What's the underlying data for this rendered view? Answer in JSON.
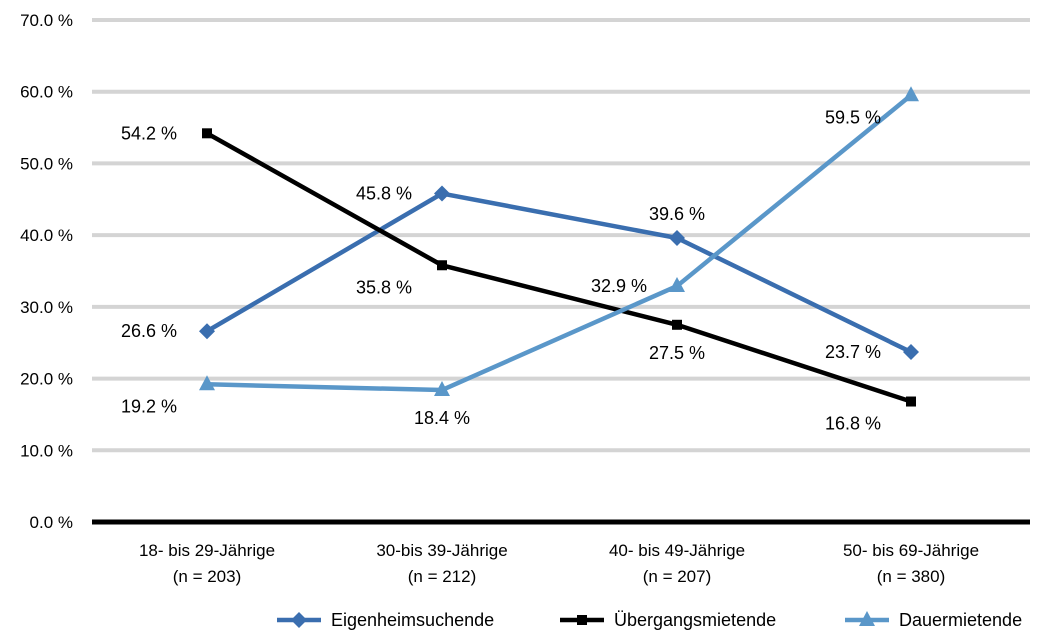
{
  "chart_data": {
    "type": "line",
    "title": "",
    "xlabel": "",
    "ylabel": "",
    "ylim": [
      0,
      70
    ],
    "y_ticks": [
      0,
      10,
      20,
      30,
      40,
      50,
      60,
      70
    ],
    "y_tick_labels": [
      "0.0 %",
      "10.0 %",
      "20.0 %",
      "30.0 %",
      "40.0 %",
      "50.0 %",
      "60.0 %",
      "70.0 %"
    ],
    "grid": true,
    "legend_position": "bottom-right",
    "categories": [
      [
        "18- bis 29-Jährige",
        "(n = 203)"
      ],
      [
        "30-bis 39-Jährige",
        "(n = 212)"
      ],
      [
        "40- bis 49-Jährige",
        "(n = 207)"
      ],
      [
        "50- bis 69-Jährige",
        "(n = 380)"
      ]
    ],
    "series": [
      {
        "name": "Eigenheimsuchende",
        "color": "#3A6EAF",
        "marker": "diamond",
        "values": [
          26.6,
          45.8,
          39.6,
          23.7
        ],
        "labels": [
          "26.6 %",
          "45.8 %",
          "39.6 %",
          "23.7 %"
        ],
        "label_pos": [
          "left",
          "left",
          "above",
          "left"
        ]
      },
      {
        "name": "Übergangsmietende",
        "color": "#000000",
        "marker": "square",
        "values": [
          54.2,
          35.8,
          27.5,
          16.8
        ],
        "labels": [
          "54.2 %",
          "35.8 %",
          "27.5 %",
          "16.8 %"
        ],
        "label_pos": [
          "left",
          "below-left",
          "below",
          "below-left"
        ]
      },
      {
        "name": "Dauermietende",
        "color": "#5A97C9",
        "marker": "triangle",
        "values": [
          19.2,
          18.4,
          32.9,
          59.5
        ],
        "labels": [
          "19.2 %",
          "18.4 %",
          "32.9 %",
          "59.5 %"
        ],
        "label_pos": [
          "below-left",
          "below",
          "left",
          "below-left"
        ]
      }
    ]
  }
}
